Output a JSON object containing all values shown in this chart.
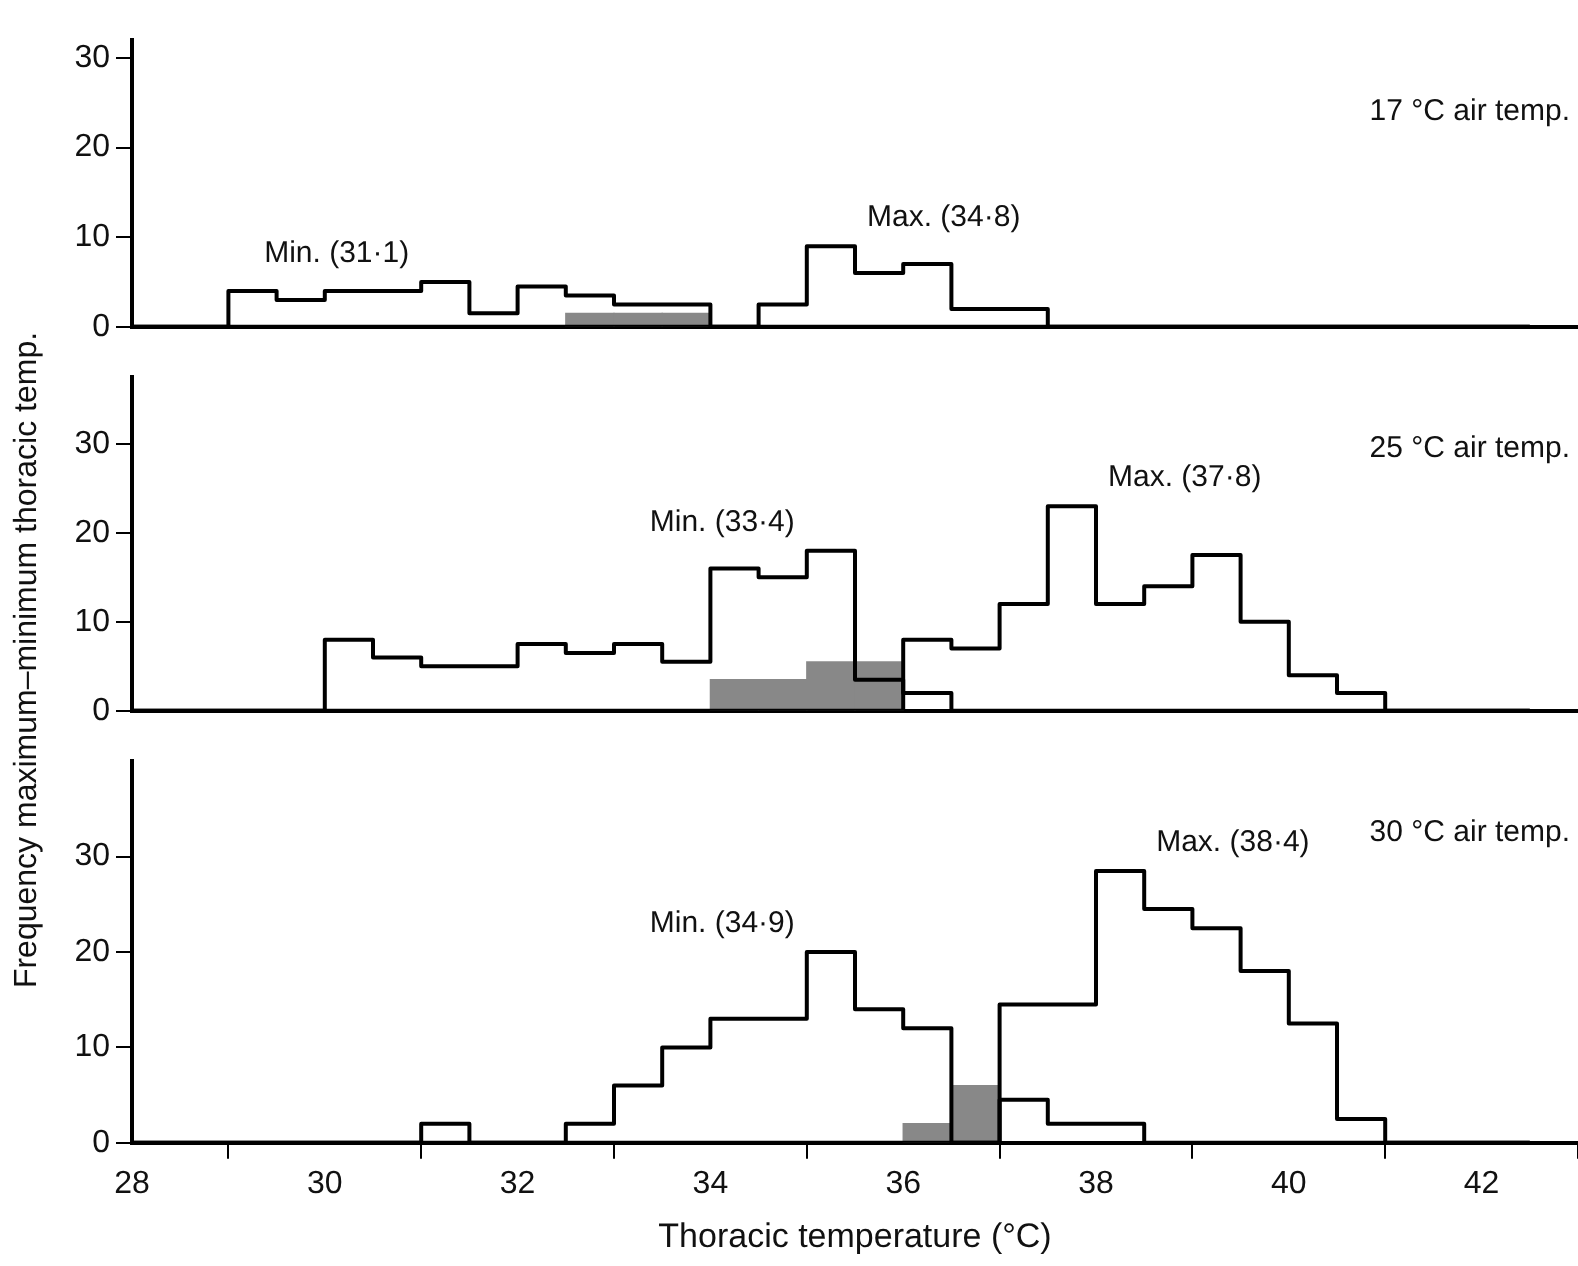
{
  "chart_data": [
    {
      "type": "histogram",
      "annotations": [
        "17 °C air temp."
      ],
      "bins": [
        28,
        28.5,
        29,
        29.5,
        30,
        30.5,
        31,
        31.5,
        32,
        32.5,
        33,
        33.5,
        34,
        34.5,
        35,
        35.5,
        36,
        36.5,
        37,
        37.5,
        38,
        38.5,
        39,
        39.5,
        40,
        40.5,
        41,
        41.5,
        42,
        42.5,
        43
      ],
      "xlim": [
        28,
        43
      ],
      "xticks": [
        28,
        30,
        32,
        34,
        36,
        38,
        40,
        42
      ],
      "ylim": [
        0,
        32
      ],
      "yticks": [
        0,
        10,
        20,
        30
      ],
      "tick_labels": "y",
      "grid": false,
      "legend": false,
      "series": [
        {
          "color": "#888888",
          "values": [
            0,
            0,
            0,
            0,
            0,
            0,
            0,
            0,
            0,
            1.5,
            1.5,
            1.5,
            0,
            0,
            0,
            0,
            0,
            0,
            0,
            0,
            0,
            0,
            0,
            0,
            0,
            0,
            0,
            0,
            0,
            0
          ]
        },
        {
          "type": "step",
          "name": "Min. (31·1)",
          "color": "#000000",
          "x": [
            28,
            28.5,
            29,
            29.5,
            30,
            30.5,
            31,
            31.5,
            32,
            32.5,
            33,
            33.5,
            34,
            34.5,
            35,
            35.5,
            36,
            36.5,
            37,
            37.5,
            38,
            38.5,
            39,
            39.5,
            40,
            40.5,
            41,
            41.5,
            42,
            42.5
          ],
          "values": [
            0,
            0,
            4,
            3,
            4,
            4,
            5,
            1.5,
            4.5,
            3.5,
            2.5,
            2.5,
            0,
            0,
            0,
            0,
            0,
            0,
            0,
            0,
            0,
            0,
            0,
            0,
            0,
            0,
            0,
            0,
            0,
            0
          ]
        },
        {
          "type": "step",
          "name": "Max. (34·8)",
          "color": "#000000",
          "x": [
            28,
            28.5,
            29,
            29.5,
            30,
            30.5,
            31,
            31.5,
            32,
            32.5,
            33,
            33.5,
            34,
            34.5,
            35,
            35.5,
            36,
            36.5,
            37,
            37.5,
            38,
            38.5,
            39,
            39.5,
            40,
            40.5,
            41,
            41.5,
            42,
            42.5
          ],
          "values": [
            0,
            0,
            0,
            0,
            0,
            0,
            0,
            0,
            0,
            0,
            0,
            0,
            0,
            2.5,
            9,
            6,
            7,
            2,
            2,
            0,
            0,
            0,
            0,
            0,
            0,
            0,
            0,
            0,
            0,
            0
          ]
        }
      ]
    },
    {
      "type": "histogram",
      "annotations": [
        "25 °C air temp."
      ],
      "ylabel": "Frequency maximum–minimum thoracic temp.",
      "bins": [
        28,
        28.5,
        29,
        29.5,
        30,
        30.5,
        31,
        31.5,
        32,
        32.5,
        33,
        33.5,
        34,
        34.5,
        35,
        35.5,
        36,
        36.5,
        37,
        37.5,
        38,
        38.5,
        39,
        39.5,
        40,
        40.5,
        41,
        41.5,
        42,
        42.5,
        43
      ],
      "xlim": [
        28,
        43
      ],
      "xticks": [
        28,
        30,
        32,
        34,
        36,
        38,
        40,
        42
      ],
      "ylim": [
        0,
        37.5
      ],
      "yticks": [
        0,
        10,
        20,
        30
      ],
      "tick_labels": "y",
      "grid": false,
      "legend": false,
      "series": [
        {
          "color": "#888888",
          "values": [
            0,
            0,
            0,
            0,
            0,
            0,
            0,
            0,
            0,
            0,
            0,
            0,
            3.5,
            3.5,
            5.5,
            5.5,
            0,
            0,
            0,
            0,
            0,
            0,
            0,
            0,
            0,
            0,
            0,
            0,
            0,
            0
          ]
        },
        {
          "type": "step",
          "name": "Min. (33·4)",
          "color": "#000000",
          "x": [
            28,
            28.5,
            29,
            29.5,
            30,
            30.5,
            31,
            31.5,
            32,
            32.5,
            33,
            33.5,
            34,
            34.5,
            35,
            35.5,
            36,
            36.5,
            37,
            37.5,
            38,
            38.5,
            39,
            39.5,
            40,
            40.5,
            41,
            41.5,
            42,
            42.5
          ],
          "values": [
            0,
            0,
            0,
            0,
            8,
            6,
            5,
            5,
            7.5,
            6.5,
            7.5,
            5.5,
            16,
            15,
            18,
            3.5,
            2,
            0,
            0,
            0,
            0,
            0,
            0,
            0,
            0,
            0,
            0,
            0,
            0,
            0
          ]
        },
        {
          "type": "step",
          "name": "Max. (37·8)",
          "color": "#000000",
          "x": [
            28,
            28.5,
            29,
            29.5,
            30,
            30.5,
            31,
            31.5,
            32,
            32.5,
            33,
            33.5,
            34,
            34.5,
            35,
            35.5,
            36,
            36.5,
            37,
            37.5,
            38,
            38.5,
            39,
            39.5,
            40,
            40.5,
            41,
            41.5,
            42,
            42.5
          ],
          "values": [
            0,
            0,
            0,
            0,
            0,
            0,
            0,
            0,
            0,
            0,
            0,
            0,
            0,
            0,
            0,
            0,
            8,
            7,
            12,
            23,
            12,
            14,
            17.5,
            10,
            4,
            2,
            0,
            0,
            0,
            0
          ]
        }
      ]
    },
    {
      "type": "histogram",
      "annotations": [
        "30 °C air temp."
      ],
      "xlabel": "Thoracic temperature (°C)",
      "bins": [
        28,
        28.5,
        29,
        29.5,
        30,
        30.5,
        31,
        31.5,
        32,
        32.5,
        33,
        33.5,
        34,
        34.5,
        35,
        35.5,
        36,
        36.5,
        37,
        37.5,
        38,
        38.5,
        39,
        39.5,
        40,
        40.5,
        41,
        41.5,
        42,
        42.5,
        43
      ],
      "xlim": [
        28,
        43
      ],
      "xticks": [
        28,
        30,
        32,
        34,
        36,
        38,
        40,
        42
      ],
      "ylim": [
        0,
        40
      ],
      "yticks": [
        0,
        10,
        20,
        30
      ],
      "grid": false,
      "legend": false,
      "series": [
        {
          "color": "#888888",
          "values": [
            0,
            0,
            0,
            0,
            0,
            0,
            0,
            0,
            0,
            0,
            0,
            0,
            0,
            0,
            0,
            0,
            2,
            6,
            0,
            0,
            0,
            0,
            0,
            0,
            0,
            0,
            0,
            0,
            0,
            0
          ]
        },
        {
          "type": "step",
          "name": "Min. (34·9)",
          "color": "#000000",
          "x": [
            28,
            28.5,
            29,
            29.5,
            30,
            30.5,
            31,
            31.5,
            32,
            32.5,
            33,
            33.5,
            34,
            34.5,
            35,
            35.5,
            36,
            36.5,
            37,
            37.5,
            38,
            38.5,
            39,
            39.5,
            40,
            40.5,
            41,
            41.5,
            42,
            42.5
          ],
          "values": [
            0,
            0,
            0,
            0,
            0,
            0,
            2,
            0,
            0,
            2,
            6,
            10,
            13,
            13,
            20,
            14,
            12,
            0,
            4.5,
            2,
            2,
            0,
            0,
            0,
            0,
            0,
            0,
            0,
            0,
            0
          ]
        },
        {
          "type": "step",
          "name": "Max. (38·4)",
          "color": "#000000",
          "x": [
            28,
            28.5,
            29,
            29.5,
            30,
            30.5,
            31,
            31.5,
            32,
            32.5,
            33,
            33.5,
            34,
            34.5,
            35,
            35.5,
            36,
            36.5,
            37,
            37.5,
            38,
            38.5,
            39,
            39.5,
            40,
            40.5,
            41,
            41.5,
            42,
            42.5
          ],
          "values": [
            0,
            0,
            0,
            0,
            0,
            0,
            0,
            0,
            0,
            0,
            0,
            0,
            0,
            0,
            0,
            0,
            0,
            0,
            14.5,
            14.5,
            28.5,
            24.5,
            22.5,
            18,
            12.5,
            2.5,
            0,
            0,
            0,
            0
          ]
        }
      ]
    }
  ]
}
